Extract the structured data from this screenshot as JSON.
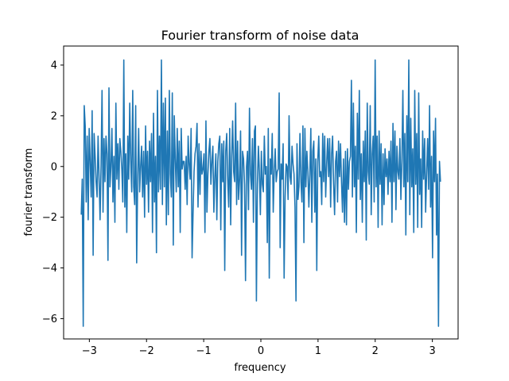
{
  "chart_data": {
    "type": "line",
    "title": "Fourier transform of noise data",
    "xlabel": "frequency",
    "ylabel": "fourier transform",
    "xlim": [
      -3.45,
      3.45
    ],
    "ylim": [
      -6.8,
      4.75
    ],
    "xticks": [
      -3,
      -2,
      -1,
      0,
      1,
      2,
      3
    ],
    "yticks": [
      -6,
      -4,
      -2,
      0,
      2,
      4
    ],
    "grid": false,
    "series": [
      {
        "color": "#1f77b4",
        "x_range": [
          -3.1416,
          3.1416
        ],
        "y": [
          -1.9,
          -0.5,
          -6.3,
          2.4,
          1.6,
          -1.4,
          1.2,
          -2.1,
          1.5,
          0.2,
          -1.2,
          2.2,
          -3.5,
          1.3,
          0.4,
          -0.6,
          -1.2,
          1.2,
          -0.4,
          -2.1,
          0.0,
          3.0,
          -1.8,
          1.1,
          -0.6,
          1.2,
          0.5,
          -3.7,
          3.1,
          -0.8,
          0.0,
          1.5,
          -1.4,
          0.4,
          -2.2,
          2.5,
          -0.5,
          0.9,
          -0.9,
          1.1,
          0.6,
          -0.1,
          -1.4,
          4.2,
          -1.6,
          0.5,
          -2.6,
          1.2,
          -0.5,
          2.5,
          0.2,
          -1.0,
          3.0,
          -0.8,
          -1.5,
          2.4,
          -3.8,
          -0.5,
          1.5,
          -1.0,
          0.0,
          0.8,
          -1.2,
          0.6,
          -2.0,
          1.6,
          -0.7,
          0.6,
          -1.8,
          1.0,
          -0.6,
          1.3,
          -2.6,
          2.1,
          -1.4,
          0.4,
          -3.4,
          3.0,
          -1.0,
          1.2,
          -0.9,
          4.2,
          -1.5,
          2.5,
          -0.8,
          2.7,
          -2.3,
          1.4,
          -1.9,
          3.0,
          -0.3,
          -1.2,
          2.9,
          -3.1,
          2.0,
          0.3,
          -1.0,
          1.5,
          -0.8,
          1.0,
          -2.6,
          1.5,
          -0.1,
          0.2,
          0.2,
          -0.9,
          0.4,
          -1.5,
          1.2,
          0.1,
          -0.5,
          1.5,
          -3.6,
          -1.8,
          -0.2,
          0.5,
          0.8,
          1.7,
          -1.6,
          0.9,
          -1.1,
          0.6,
          -0.3,
          -0.1,
          0.5,
          -2.6,
          1.8,
          -1.8,
          -0.3,
          0.6,
          1.1,
          -0.7,
          0.2,
          0.8,
          -1.8,
          -0.4,
          0.5,
          -2.1,
          0.2,
          0.9,
          1.2,
          -2.5,
          0.9,
          -0.6,
          1.0,
          -4.1,
          0.6,
          1.3,
          -0.5,
          -1.6,
          1.5,
          -2.3,
          0.4,
          1.8,
          -0.2,
          -0.6,
          2.5,
          -1.5,
          1.0,
          -1.3,
          -0.5,
          1.4,
          -3.5,
          0.6,
          0.3,
          -0.7,
          -4.5,
          0.0,
          0.6,
          -1.7,
          2.3,
          -0.3,
          -0.9,
          1.1,
          -2.2,
          1.4,
          1.6,
          -5.3,
          -0.7,
          0.8,
          -0.2,
          -1.9,
          0.6,
          -0.7,
          -1.0,
          1.2,
          -0.3,
          0.0,
          -3.0,
          1.5,
          -4.4,
          0.3,
          -0.3,
          1.3,
          -1.8,
          -0.2,
          0.7,
          -0.6,
          -0.2,
          -0.1,
          2.9,
          -3.2,
          0.1,
          -0.5,
          0.9,
          -4.4,
          -1.2,
          0.1,
          0.0,
          -1.3,
          2.0,
          -0.4,
          -0.7,
          0.8,
          0.1,
          -0.3,
          -1.6,
          -5.3,
          0.9,
          -1.3,
          -0.8,
          1.3,
          -0.6,
          -1.4,
          1.6,
          -3.0,
          1.5,
          -0.8,
          0.6,
          -0.2,
          -1.6,
          -0.3,
          1.5,
          -2.2,
          0.6,
          1.0,
          -1.8,
          0.3,
          -4.1,
          0.2,
          1.2,
          -0.4,
          -0.2,
          -1.5,
          1.3,
          -0.6,
          1.2,
          -1.2,
          0.1,
          1.1,
          -0.4,
          1.1,
          -1.6,
          0.5,
          1.2,
          -0.7,
          -1.9,
          0.2,
          0.6,
          -1.4,
          1.0,
          -0.4,
          0.9,
          -0.6,
          -1.8,
          0.3,
          -2.2,
          0.6,
          -2.3,
          0.7,
          -0.9,
          0.2,
          0.4,
          3.4,
          -1.2,
          2.5,
          -0.8,
          0.8,
          -2.6,
          2.1,
          -0.5,
          3.0,
          -1.3,
          0.5,
          -2.2,
          1.0,
          -0.6,
          1.4,
          -2.9,
          2.5,
          -0.2,
          -0.7,
          2.4,
          -1.9,
          0.5,
          1.2,
          -1.4,
          4.2,
          -0.8,
          1.2,
          -2.4,
          1.4,
          -0.7,
          0.9,
          -2.3,
          0.5,
          -1.5,
          0.7,
          -0.4,
          0.3,
          -1.1,
          0.6,
          -0.6,
          1.0,
          -2.2,
          1.7,
          -0.6,
          1.4,
          -1.7,
          0.8,
          -0.2,
          -0.5,
          1.1,
          -1.3,
          0.2,
          3.0,
          -0.8,
          1.3,
          -2.7,
          2.0,
          -0.6,
          4.2,
          -1.9,
          1.9,
          -0.8,
          0.7,
          -2.6,
          3.0,
          -0.7,
          1.3,
          -2.4,
          2.9,
          -1.1,
          0.3,
          -2.4,
          1.4,
          -0.5,
          1.1,
          -1.8,
          -0.3,
          1.1,
          -0.9,
          2.4,
          -1.6,
          0.4,
          -3.6,
          1.4,
          -0.6,
          1.9,
          -2.7,
          -0.3,
          -6.3,
          0.2,
          -0.6
        ]
      }
    ]
  }
}
